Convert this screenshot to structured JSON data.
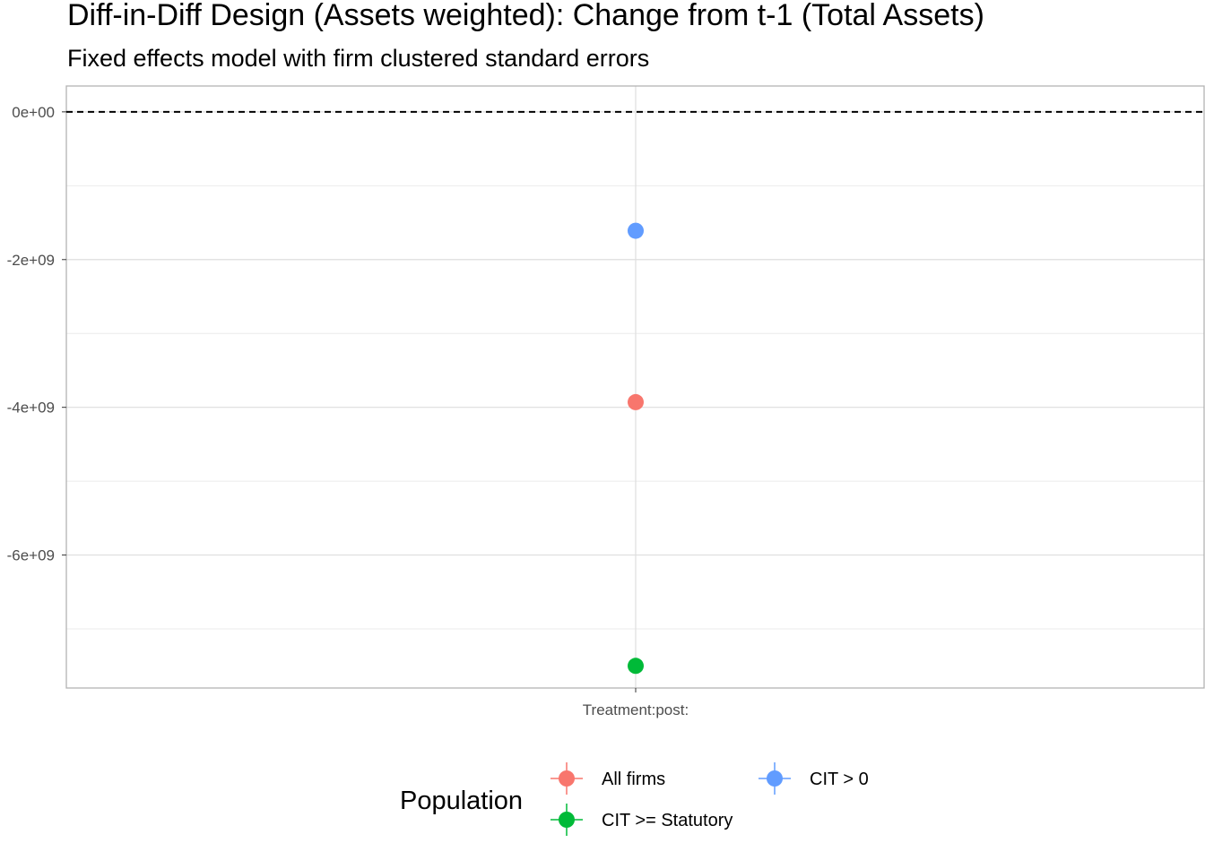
{
  "chart_data": {
    "type": "scatter",
    "title": "Diff-in-Diff Design (Assets weighted): Change from t-1 (Total Assets)",
    "subtitle": "Fixed effects model with firm clustered standard errors",
    "categories": [
      "Treatment:post:"
    ],
    "ylim": [
      -7800000000,
      350000000
    ],
    "y_ticks": [
      0,
      -2000000000,
      -4000000000,
      -6000000000
    ],
    "y_tick_labels": [
      "0e+00",
      "-2e+09",
      "-4e+09",
      "-6e+09"
    ],
    "y_minor_ticks": [
      -1000000000,
      -3000000000,
      -5000000000,
      -7000000000
    ],
    "reference_line": {
      "y": 0,
      "style": "dashed"
    },
    "grid": true,
    "legend_title": "Population",
    "legend_position": "bottom",
    "series": [
      {
        "name": "All firms",
        "color": "#F8766D",
        "values": [
          -3930000000
        ]
      },
      {
        "name": "CIT >= Statutory",
        "color": "#00BA38",
        "values": [
          -7500000000
        ]
      },
      {
        "name": "CIT > 0",
        "color": "#619CFF",
        "values": [
          -1610000000
        ]
      }
    ]
  }
}
